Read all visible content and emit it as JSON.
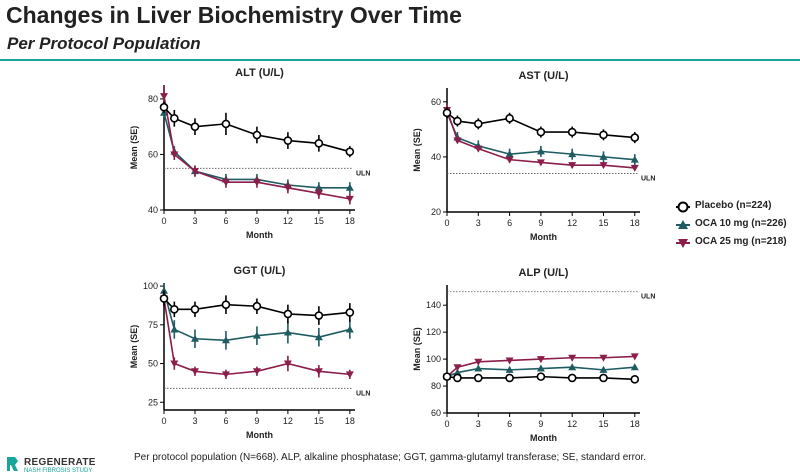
{
  "header": {
    "title": "Changes in Liver Biochemistry Over Time",
    "subtitle": "Per Protocol Population"
  },
  "legend": [
    {
      "label": "Placebo (n=224)",
      "color": "#000000",
      "marker": "circle"
    },
    {
      "label": "OCA 10 mg (n=226)",
      "color": "#1e5c62",
      "marker": "triangle-up"
    },
    {
      "label": "OCA 25 mg (n=218)",
      "color": "#8b1e4a",
      "marker": "triangle-down"
    }
  ],
  "footnote": "Per protocol population (N=668). ALP, alkaline phosphatase;  GGT, gamma-glutamyl transferase; SE, standard error.",
  "logo": {
    "name": "REGENERATE",
    "sub": "NASH FIBROSIS STUDY"
  },
  "chart_data": [
    {
      "type": "line",
      "title": "ALT (U/L)",
      "xlabel": "Month",
      "ylabel": "Mean (SE)",
      "x": [
        0,
        1,
        3,
        6,
        9,
        12,
        15,
        18
      ],
      "xticks": [
        0,
        3,
        6,
        9,
        12,
        15,
        18
      ],
      "xlim": [
        0,
        18.5
      ],
      "ylim": [
        40,
        85
      ],
      "yticks": [
        40,
        60,
        80
      ],
      "reference": {
        "label": "ULN",
        "value": 55
      },
      "series": [
        {
          "name": "Placebo",
          "values": [
            77,
            73,
            70,
            71,
            67,
            65,
            64,
            61
          ],
          "err": [
            2,
            3,
            3,
            4,
            3,
            3,
            3,
            2
          ]
        },
        {
          "name": "OCA 10 mg",
          "values": [
            75,
            61,
            54,
            51,
            51,
            49,
            48,
            48
          ],
          "err": [
            2,
            2,
            2,
            2,
            2,
            2,
            2,
            2
          ]
        },
        {
          "name": "OCA 25 mg",
          "values": [
            81,
            60,
            54,
            50,
            50,
            48,
            46,
            44
          ],
          "err": [
            4,
            2,
            2,
            2,
            2,
            2,
            2,
            2
          ]
        }
      ]
    },
    {
      "type": "line",
      "title": "AST (U/L)",
      "xlabel": "Month",
      "ylabel": "Mean (SE)",
      "x": [
        0,
        1,
        3,
        6,
        9,
        12,
        15,
        18
      ],
      "xticks": [
        0,
        3,
        6,
        9,
        12,
        15,
        18
      ],
      "xlim": [
        0,
        18.5
      ],
      "ylim": [
        20,
        65
      ],
      "yticks": [
        20,
        40,
        60
      ],
      "reference": {
        "label": "ULN",
        "value": 34
      },
      "series": [
        {
          "name": "Placebo",
          "values": [
            56,
            53,
            52,
            54,
            49,
            49,
            48,
            47
          ],
          "err": [
            2,
            2,
            2,
            2,
            2,
            2,
            2,
            2
          ]
        },
        {
          "name": "OCA 10 mg",
          "values": [
            56,
            47,
            44,
            41,
            42,
            41,
            40,
            39
          ],
          "err": [
            2,
            2,
            2,
            2,
            2,
            2,
            2,
            2
          ]
        },
        {
          "name": "OCA 25 mg",
          "values": [
            57,
            46,
            43,
            39,
            38,
            37,
            37,
            36
          ],
          "err": [
            2,
            1,
            1,
            1,
            1,
            1,
            1,
            1
          ]
        }
      ]
    },
    {
      "type": "line",
      "title": "GGT (U/L)",
      "xlabel": "Month",
      "ylabel": "Mean (SE)",
      "x": [
        0,
        1,
        3,
        6,
        9,
        12,
        15,
        18
      ],
      "xticks": [
        0,
        3,
        6,
        9,
        12,
        15,
        18
      ],
      "xlim": [
        0,
        18.5
      ],
      "ylim": [
        20,
        102
      ],
      "yticks": [
        25,
        50,
        75,
        100
      ],
      "reference": {
        "label": "ULN",
        "value": 34
      },
      "series": [
        {
          "name": "Placebo",
          "values": [
            92,
            85,
            85,
            88,
            87,
            82,
            81,
            83
          ],
          "err": [
            5,
            5,
            5,
            6,
            5,
            6,
            6,
            6
          ]
        },
        {
          "name": "OCA 10 mg",
          "values": [
            97,
            72,
            66,
            65,
            68,
            70,
            67,
            72
          ],
          "err": [
            5,
            6,
            6,
            6,
            6,
            7,
            6,
            6
          ]
        },
        {
          "name": "OCA 25 mg",
          "values": [
            92,
            50,
            45,
            43,
            45,
            50,
            45,
            43
          ],
          "err": [
            5,
            4,
            3,
            3,
            3,
            5,
            4,
            3
          ]
        }
      ]
    },
    {
      "type": "line",
      "title": "ALP (U/L)",
      "xlabel": "Month",
      "ylabel": "Mean (SE)",
      "x": [
        0,
        1,
        3,
        6,
        9,
        12,
        15,
        18
      ],
      "xticks": [
        0,
        3,
        6,
        9,
        12,
        15,
        18
      ],
      "xlim": [
        0,
        18.5
      ],
      "ylim": [
        60,
        155
      ],
      "yticks": [
        60,
        80,
        100,
        120,
        140
      ],
      "reference": {
        "label": "ULN",
        "value": 150
      },
      "series": [
        {
          "name": "Placebo",
          "values": [
            87,
            86,
            86,
            86,
            87,
            86,
            86,
            85
          ],
          "err": [
            2,
            2,
            2,
            2,
            2,
            2,
            2,
            2
          ]
        },
        {
          "name": "OCA 10 mg",
          "values": [
            87,
            90,
            93,
            92,
            93,
            94,
            92,
            94
          ],
          "err": [
            2,
            2,
            2,
            2,
            2,
            2,
            2,
            2
          ]
        },
        {
          "name": "OCA 25 mg",
          "values": [
            87,
            94,
            98,
            99,
            100,
            101,
            101,
            102
          ],
          "err": [
            2,
            2,
            2,
            2,
            2,
            2,
            2,
            2
          ]
        }
      ]
    }
  ]
}
